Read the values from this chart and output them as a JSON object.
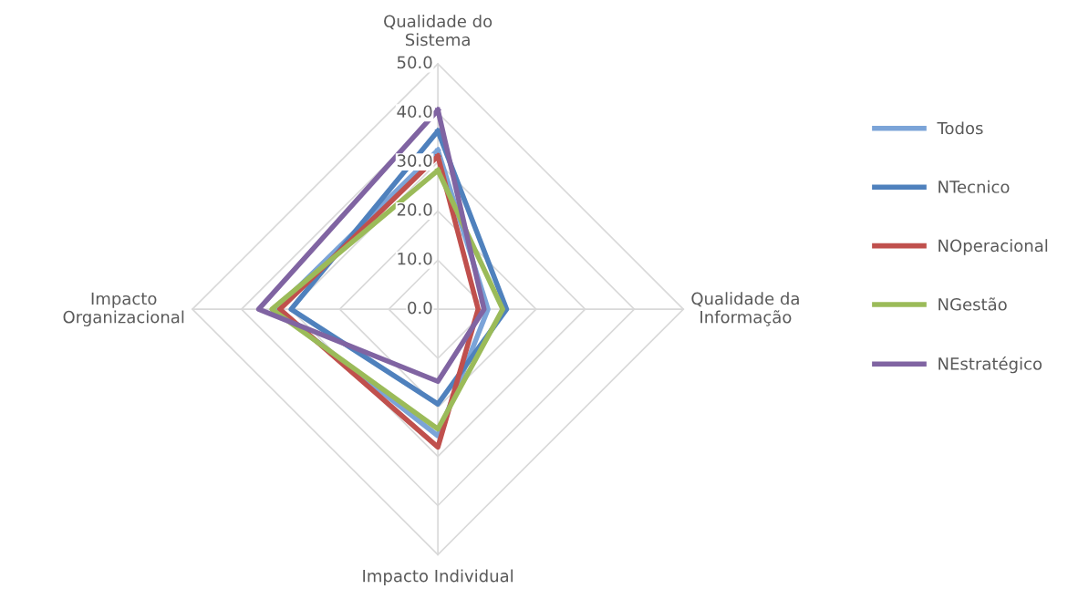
{
  "chart_data": {
    "type": "radar",
    "categories": [
      "Qualidade do Sistema",
      "Qualidade da Informação",
      "Impacto Individual",
      "Impacto Organizacional"
    ],
    "series": [
      {
        "name": "Todos",
        "color": "#7ba4d8",
        "values": [
          32.4,
          10.2,
          25.8,
          33.0
        ]
      },
      {
        "name": "NTecnico",
        "color": "#4f81bd",
        "values": [
          36.3,
          14.0,
          19.3,
          29.9
        ]
      },
      {
        "name": "NOperacional",
        "color": "#c0504d",
        "values": [
          31.2,
          8.2,
          28.1,
          32.2
        ]
      },
      {
        "name": "NGestão",
        "color": "#9bbb59",
        "values": [
          28.3,
          13.2,
          24.4,
          33.8
        ]
      },
      {
        "name": "NEstratégico",
        "color": "#8064a2",
        "values": [
          40.6,
          9.4,
          14.7,
          36.5
        ]
      }
    ],
    "ylim": [
      0,
      50
    ],
    "yticks": [
      {
        "value": 0,
        "label": "0.0"
      },
      {
        "value": 10,
        "label": "10.0"
      },
      {
        "value": 20,
        "label": "20.0"
      },
      {
        "value": 30,
        "label": "30.0"
      },
      {
        "value": 40,
        "label": "40.0"
      },
      {
        "value": 50,
        "label": "50.0"
      }
    ],
    "grid": true,
    "legend": "right"
  }
}
